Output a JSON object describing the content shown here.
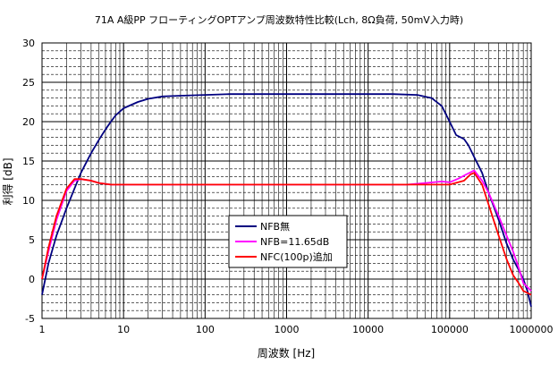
{
  "chart_data": {
    "type": "line",
    "title": "71A A級PP フローティングOPTアンプ周波数特性比較(Lch, 8Ω負荷, 50mV入力時)",
    "xlabel": "周波数 [Hz]",
    "ylabel": "利得 [dB]",
    "x_scale": "log",
    "xlim": [
      1,
      1000000
    ],
    "ylim": [
      -5,
      30
    ],
    "x_ticks": [
      1,
      10,
      100,
      1000,
      10000,
      100000,
      1000000
    ],
    "x_tick_labels": [
      "1",
      "10",
      "100",
      "1000",
      "10000",
      "100000",
      "1000000"
    ],
    "y_ticks": [
      -5,
      0,
      5,
      10,
      15,
      20,
      25,
      30
    ],
    "y_tick_labels": [
      "-5",
      "0",
      "5",
      "10",
      "15",
      "20",
      "25",
      "30"
    ],
    "grid": true,
    "legend_position": "center-bottom",
    "series": [
      {
        "name": "NFB無",
        "color": "#000080",
        "x": [
          1,
          1.2,
          1.5,
          2,
          2.5,
          3,
          4,
          5,
          6,
          7,
          8,
          10,
          15,
          20,
          30,
          50,
          100,
          200,
          500,
          1000,
          2000,
          5000,
          10000,
          20000,
          40000,
          60000,
          80000,
          100000,
          120000,
          150000,
          170000,
          200000,
          250000,
          300000,
          400000,
          500000,
          600000,
          700000,
          800000,
          900000,
          1000000
        ],
        "values": [
          -2,
          2,
          5.5,
          9,
          11.5,
          13.5,
          16,
          17.7,
          19,
          20,
          20.8,
          21.7,
          22.5,
          22.9,
          23.2,
          23.3,
          23.4,
          23.5,
          23.5,
          23.5,
          23.5,
          23.5,
          23.5,
          23.5,
          23.4,
          23,
          22,
          20,
          18.3,
          17.8,
          17,
          15.5,
          13.5,
          11,
          7.5,
          4.5,
          2.5,
          1.2,
          0,
          -1.5,
          -3.5
        ]
      },
      {
        "name": "NFB=11.65dB",
        "color": "#ff00ff",
        "x": [
          1,
          1.2,
          1.5,
          2,
          2.5,
          3,
          4,
          5,
          7,
          10,
          100,
          1000,
          10000,
          30000,
          50000,
          80000,
          100000,
          130000,
          160000,
          200000,
          250000,
          300000,
          400000,
          500000,
          600000,
          700000,
          800000,
          1000000
        ],
        "values": [
          0,
          3.5,
          7.5,
          11.2,
          12.5,
          12.7,
          12.5,
          12.2,
          12,
          12,
          12,
          12,
          12,
          12,
          12.2,
          12.4,
          12.3,
          12.8,
          13.3,
          13.8,
          12.5,
          11,
          8,
          5.5,
          3.5,
          1.5,
          -0.5,
          -1.5
        ]
      },
      {
        "name": "NFC(100p)追加",
        "color": "#ff0000",
        "x": [
          1,
          1.2,
          1.5,
          2,
          2.5,
          3,
          4,
          5,
          7,
          10,
          100,
          1000,
          10000,
          50000,
          100000,
          150000,
          180000,
          200000,
          250000,
          300000,
          400000,
          500000,
          600000,
          700000,
          800000,
          1000000
        ],
        "values": [
          0,
          4,
          8,
          11.5,
          12.7,
          12.7,
          12.5,
          12.2,
          12,
          12,
          12,
          12,
          12,
          12,
          12,
          12.5,
          13.3,
          13.5,
          12,
          9.5,
          5.5,
          2.5,
          0.5,
          -0.5,
          -1.5,
          -2
        ]
      }
    ]
  }
}
